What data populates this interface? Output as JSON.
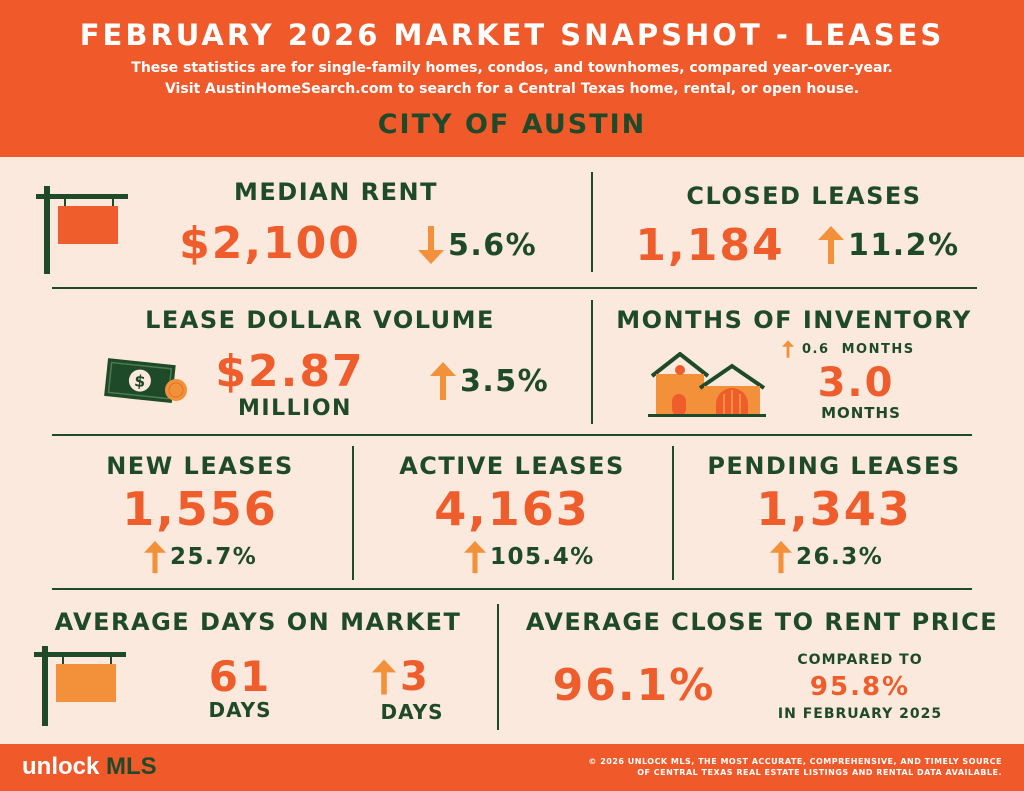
{
  "header": {
    "title": "FEBRUARY 2026 MARKET SNAPSHOT - LEASES",
    "subtitle_line1": "These statistics are for single-family homes, condos, and townhomes, compared year-over-year.",
    "subtitle_line2": "Visit AustinHomeSearch.com to search for a Central Texas home, rental, or open house.",
    "city": "CITY OF AUSTIN"
  },
  "median_rent": {
    "label": "MEDIAN RENT",
    "value": "$2,100",
    "change": "5.6%",
    "direction": "down"
  },
  "closed_leases": {
    "label": "CLOSED LEASES",
    "value": "1,184",
    "change": "11.2%",
    "direction": "up"
  },
  "lease_dollar_volume": {
    "label": "LEASE DOLLAR VOLUME",
    "value": "$2.87",
    "unit": "MILLION",
    "change": "3.5%",
    "direction": "up"
  },
  "months_of_inventory": {
    "label": "MONTHS OF INVENTORY",
    "change": "0.6  MONTHS",
    "direction": "up",
    "value": "3.0",
    "unit": "MONTHS"
  },
  "new_leases": {
    "label": "NEW LEASES",
    "value": "1,556",
    "change": "25.7%",
    "direction": "up"
  },
  "active_leases": {
    "label": "ACTIVE LEASES",
    "value": "4,163",
    "change": "105.4%",
    "direction": "up"
  },
  "pending_leases": {
    "label": "PENDING LEASES",
    "value": "1,343",
    "change": "26.3%",
    "direction": "up"
  },
  "average_days_on_market": {
    "label": "AVERAGE DAYS ON MARKET",
    "value": "61",
    "unit": "DAYS",
    "change": "3",
    "change_unit": "DAYS",
    "direction": "up"
  },
  "average_close_to_rent": {
    "label": "AVERAGE CLOSE TO RENT PRICE",
    "value": "96.1%",
    "compared_label": "COMPARED TO",
    "compared_value": "95.8%",
    "compared_period": "IN FEBRUARY 2025"
  },
  "footer": {
    "logo_prefix": "unlock",
    "logo_suffix": "MLS",
    "legal_line1": "© 2026 UNLOCK MLS, THE MOST ACCURATE, COMPREHENSIVE, AND TIMELY SOURCE",
    "legal_line2": "OF CENTRAL TEXAS REAL ESTATE LISTINGS AND RENTAL DATA AVAILABLE."
  },
  "colors": {
    "orange": "#f0592a",
    "green": "#1f4a2a",
    "cream": "#fae9dc",
    "arrow": "#f2913a"
  },
  "icons": [
    "sign-post-icon",
    "money-bill-icon",
    "house-icon",
    "arrow-up-icon",
    "arrow-down-icon"
  ]
}
